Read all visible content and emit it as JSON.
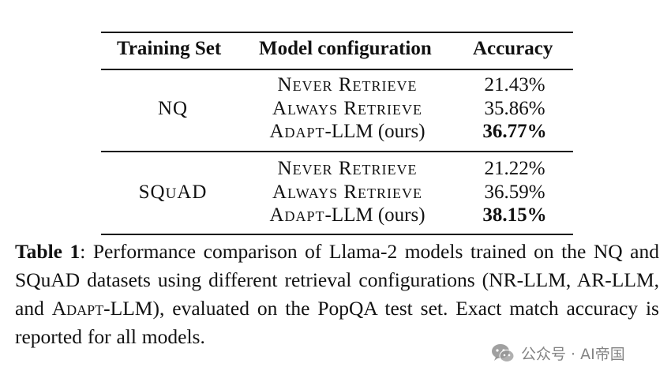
{
  "table": {
    "headers": [
      "Training Set",
      "Model configuration",
      "Accuracy"
    ],
    "groups": [
      {
        "dataset": "NQ",
        "rows": [
          {
            "config": "Never Retrieve",
            "accuracy": "21.43%",
            "best": false
          },
          {
            "config": "Always Retrieve",
            "accuracy": "35.86%",
            "best": false
          },
          {
            "config_prefix": "Adapt",
            "config_suffix": "-LLM (ours)",
            "accuracy": "36.77%",
            "best": true
          }
        ]
      },
      {
        "dataset_parts": [
          "SQ",
          "u",
          "AD"
        ],
        "rows": [
          {
            "config": "Never Retrieve",
            "accuracy": "21.22%",
            "best": false
          },
          {
            "config": "Always Retrieve",
            "accuracy": "36.59%",
            "best": false
          },
          {
            "config_prefix": "Adapt",
            "config_suffix": "-LLM (ours)",
            "accuracy": "38.15%",
            "best": true
          }
        ]
      }
    ]
  },
  "caption": {
    "label": "Table 1",
    "part1": ": Performance comparison of Llama-2 models trained on the NQ and SQuAD datasets using different retrieval configurations (NR-LLM, AR-LLM, and ",
    "adapt": "Adapt",
    "part2": "-LLM), evaluated on the PopQA test set. Exact match accuracy is reported for all models."
  },
  "watermark": {
    "icon": "wechat-icon",
    "text": "公众号 · AI帝国"
  }
}
